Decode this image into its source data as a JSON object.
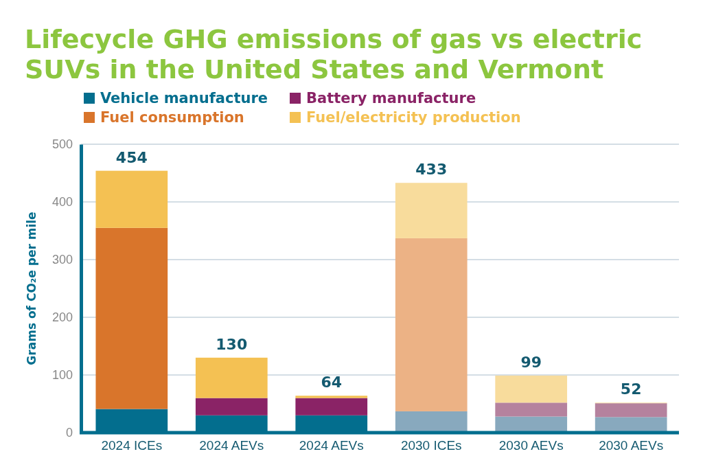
{
  "chart_data": {
    "type": "bar",
    "stacked": true,
    "title": "Lifecycle GHG emissions of gas vs electric SUVs in the United States and Vermont",
    "ylabel": "Grams of CO₂e per mile",
    "categories": [
      "2024 ICEs",
      "2024 AEVs",
      "2024 AEVs",
      "2030 ICEs",
      "2030 AEVs",
      "2030 AEVs"
    ],
    "series": [
      {
        "name": "Vehicle manufacture",
        "color": "#036e8e",
        "colors": [
          "#036e8e",
          "#036e8e",
          "#036e8e",
          "#88a9be",
          "#88a9be",
          "#88a9be"
        ],
        "values": [
          41,
          30,
          30,
          37,
          28,
          27
        ]
      },
      {
        "name": "Battery manufacture",
        "color": "#8a2366",
        "colors": [
          "#8a2366",
          "#8a2366",
          "#8a2366",
          "#b5829e",
          "#b5829e",
          "#b5829e"
        ],
        "values": [
          0,
          30,
          30,
          0,
          24,
          24
        ]
      },
      {
        "name": "Fuel consumption",
        "color": "#d9752b",
        "colors": [
          "#d9752b",
          "#d9752b",
          "#d9752b",
          "#ecb285",
          "#ecb285",
          "#ecb285"
        ],
        "values": [
          314,
          0,
          0,
          300,
          0,
          0
        ]
      },
      {
        "name": "Fuel/electricity production",
        "color": "#f4c153",
        "colors": [
          "#f4c153",
          "#f4c153",
          "#f4c153",
          "#f8dc9c",
          "#f8dc9c",
          "#f8dc9c"
        ],
        "values": [
          99,
          70,
          4,
          96,
          47,
          1
        ]
      }
    ],
    "totals": [
      "454",
      "130",
      "64",
      "433",
      "99",
      "52"
    ],
    "ylim": [
      0,
      500
    ],
    "yticks": [
      0,
      100,
      200,
      300,
      400,
      500
    ],
    "grid": "y",
    "legend": "top left"
  }
}
